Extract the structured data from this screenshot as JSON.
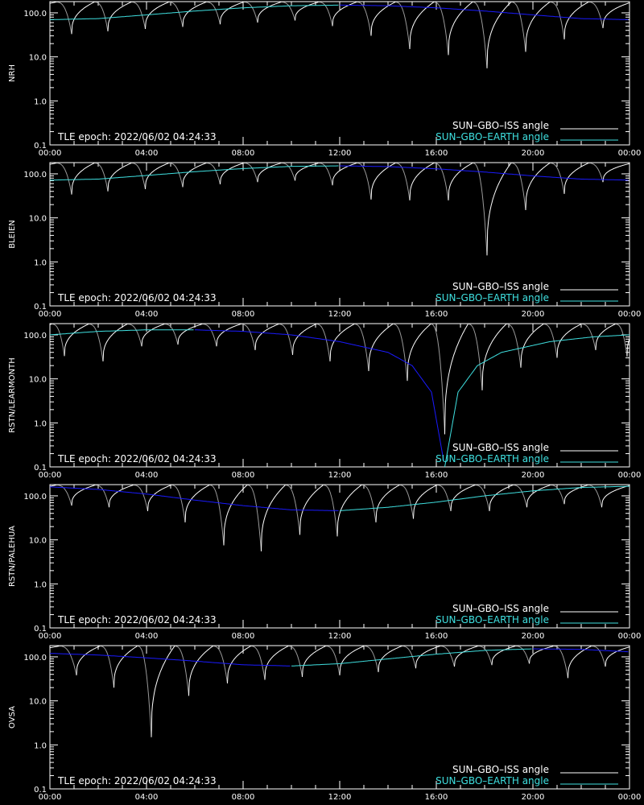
{
  "colors": {
    "background": "#000000",
    "axes": "#ffffff",
    "iss_series": "#ffffff",
    "earth_series_sun_side": "#3fe0e0",
    "earth_series_other_side": "#1a1aff"
  },
  "legend": {
    "iss_label": "SUN–GBO–ISS angle",
    "earth_label": "SUN–GBO–EARTH angle",
    "position": "bottom-right"
  },
  "epoch_label": "TLE epoch: 2022/06/02 04:24:33",
  "x_ticks": [
    "00:00",
    "04:00",
    "08:00",
    "12:00",
    "16:00",
    "20:00",
    "00:00"
  ],
  "y_ticks": [
    "0.1",
    "1.0",
    "10.0",
    "100.0"
  ],
  "chart_data": [
    {
      "type": "line",
      "ylabel": "NRH",
      "y_scale": "log",
      "ylim": [
        0.1,
        180
      ],
      "xlim_hours": [
        0,
        24
      ],
      "iss_minima": [
        {
          "t": 0.9,
          "v": 33
        },
        {
          "t": 2.4,
          "v": 38
        },
        {
          "t": 3.95,
          "v": 43
        },
        {
          "t": 5.5,
          "v": 48
        },
        {
          "t": 7.05,
          "v": 55
        },
        {
          "t": 8.6,
          "v": 60
        },
        {
          "t": 10.15,
          "v": 67
        },
        {
          "t": 11.7,
          "v": 50
        },
        {
          "t": 13.3,
          "v": 30
        },
        {
          "t": 14.9,
          "v": 15
        },
        {
          "t": 16.5,
          "v": 11
        },
        {
          "t": 18.1,
          "v": 5.5
        },
        {
          "t": 19.7,
          "v": 13
        },
        {
          "t": 21.3,
          "v": 25
        },
        {
          "t": 22.9,
          "v": 45
        }
      ],
      "earth_curve": [
        {
          "t": 0,
          "v": 70
        },
        {
          "t": 2,
          "v": 74
        },
        {
          "t": 4,
          "v": 90
        },
        {
          "t": 6,
          "v": 110
        },
        {
          "t": 8,
          "v": 130
        },
        {
          "t": 10,
          "v": 145
        },
        {
          "t": 12,
          "v": 150
        },
        {
          "t": 14,
          "v": 145
        },
        {
          "t": 16,
          "v": 130
        },
        {
          "t": 18,
          "v": 110
        },
        {
          "t": 20,
          "v": 90
        },
        {
          "t": 22,
          "v": 74
        },
        {
          "t": 24,
          "v": 70
        }
      ]
    },
    {
      "type": "line",
      "ylabel": "BLEIEN",
      "y_scale": "log",
      "ylim": [
        0.1,
        180
      ],
      "xlim_hours": [
        0,
        24
      ],
      "iss_minima": [
        {
          "t": 0.9,
          "v": 34
        },
        {
          "t": 2.4,
          "v": 40
        },
        {
          "t": 3.95,
          "v": 45
        },
        {
          "t": 5.5,
          "v": 50
        },
        {
          "t": 7.05,
          "v": 58
        },
        {
          "t": 8.6,
          "v": 65
        },
        {
          "t": 10.15,
          "v": 70
        },
        {
          "t": 11.7,
          "v": 55
        },
        {
          "t": 13.3,
          "v": 26
        },
        {
          "t": 14.9,
          "v": 25
        },
        {
          "t": 16.5,
          "v": 25
        },
        {
          "t": 18.1,
          "v": 1.4
        },
        {
          "t": 19.7,
          "v": 15
        },
        {
          "t": 21.3,
          "v": 35
        },
        {
          "t": 22.9,
          "v": 65
        }
      ],
      "earth_curve": [
        {
          "t": 0,
          "v": 72
        },
        {
          "t": 2,
          "v": 76
        },
        {
          "t": 4,
          "v": 92
        },
        {
          "t": 6,
          "v": 112
        },
        {
          "t": 8,
          "v": 132
        },
        {
          "t": 10,
          "v": 148
        },
        {
          "t": 12,
          "v": 152
        },
        {
          "t": 14,
          "v": 146
        },
        {
          "t": 16,
          "v": 130
        },
        {
          "t": 18,
          "v": 110
        },
        {
          "t": 20,
          "v": 90
        },
        {
          "t": 22,
          "v": 76
        },
        {
          "t": 24,
          "v": 72
        }
      ]
    },
    {
      "type": "line",
      "ylabel": "RSTN/LEARMONTH",
      "y_scale": "log",
      "ylim": [
        0.1,
        180
      ],
      "xlim_hours": [
        0,
        24
      ],
      "iss_minima": [
        {
          "t": 0.6,
          "v": 33
        },
        {
          "t": 2.2,
          "v": 25
        },
        {
          "t": 3.8,
          "v": 55
        },
        {
          "t": 5.3,
          "v": 60
        },
        {
          "t": 6.9,
          "v": 55
        },
        {
          "t": 8.5,
          "v": 45
        },
        {
          "t": 10.05,
          "v": 35
        },
        {
          "t": 11.6,
          "v": 25
        },
        {
          "t": 13.2,
          "v": 15
        },
        {
          "t": 14.8,
          "v": 9
        },
        {
          "t": 16.35,
          "v": 0.55
        },
        {
          "t": 17.9,
          "v": 5.5
        },
        {
          "t": 19.5,
          "v": 18
        },
        {
          "t": 21.0,
          "v": 30
        },
        {
          "t": 22.6,
          "v": 45
        },
        {
          "t": 23.9,
          "v": 32
        }
      ],
      "earth_curve": [
        {
          "t": 0,
          "v": 100
        },
        {
          "t": 2,
          "v": 120
        },
        {
          "t": 4,
          "v": 130
        },
        {
          "t": 6,
          "v": 130
        },
        {
          "t": 8,
          "v": 120
        },
        {
          "t": 10,
          "v": 100
        },
        {
          "t": 12,
          "v": 70
        },
        {
          "t": 14,
          "v": 40
        },
        {
          "t": 15,
          "v": 20
        },
        {
          "t": 15.8,
          "v": 5
        },
        {
          "t": 16.35,
          "v": 0.1
        },
        {
          "t": 16.9,
          "v": 5
        },
        {
          "t": 17.7,
          "v": 20
        },
        {
          "t": 18.7,
          "v": 40
        },
        {
          "t": 20.7,
          "v": 70
        },
        {
          "t": 22.5,
          "v": 90
        },
        {
          "t": 24,
          "v": 100
        }
      ]
    },
    {
      "type": "line",
      "ylabel": "RSTN/PALEHUA",
      "y_scale": "log",
      "ylim": [
        0.1,
        180
      ],
      "xlim_hours": [
        0,
        24
      ],
      "iss_minima": [
        {
          "t": 0.9,
          "v": 60
        },
        {
          "t": 2.45,
          "v": 55
        },
        {
          "t": 4.05,
          "v": 45
        },
        {
          "t": 5.6,
          "v": 25
        },
        {
          "t": 7.2,
          "v": 7.5
        },
        {
          "t": 8.75,
          "v": 5.5
        },
        {
          "t": 10.35,
          "v": 13
        },
        {
          "t": 11.9,
          "v": 12
        },
        {
          "t": 13.5,
          "v": 25
        },
        {
          "t": 15.05,
          "v": 30
        },
        {
          "t": 16.6,
          "v": 45
        },
        {
          "t": 18.2,
          "v": 45
        },
        {
          "t": 19.75,
          "v": 55
        },
        {
          "t": 21.3,
          "v": 65
        },
        {
          "t": 22.85,
          "v": 55
        }
      ],
      "earth_curve": [
        {
          "t": 0,
          "v": 160
        },
        {
          "t": 2,
          "v": 140
        },
        {
          "t": 4,
          "v": 110
        },
        {
          "t": 6,
          "v": 80
        },
        {
          "t": 8,
          "v": 60
        },
        {
          "t": 10,
          "v": 48
        },
        {
          "t": 12,
          "v": 46
        },
        {
          "t": 14,
          "v": 55
        },
        {
          "t": 16,
          "v": 72
        },
        {
          "t": 18,
          "v": 100
        },
        {
          "t": 20,
          "v": 130
        },
        {
          "t": 22,
          "v": 155
        },
        {
          "t": 24,
          "v": 165
        }
      ]
    },
    {
      "type": "line",
      "ylabel": "OVSA",
      "y_scale": "log",
      "ylim": [
        0.1,
        180
      ],
      "xlim_hours": [
        0,
        24
      ],
      "iss_minima": [
        {
          "t": 1.1,
          "v": 38
        },
        {
          "t": 2.65,
          "v": 20
        },
        {
          "t": 4.2,
          "v": 1.5
        },
        {
          "t": 5.75,
          "v": 13
        },
        {
          "t": 7.35,
          "v": 25
        },
        {
          "t": 8.9,
          "v": 30
        },
        {
          "t": 10.45,
          "v": 35
        },
        {
          "t": 12.0,
          "v": 38
        },
        {
          "t": 13.6,
          "v": 45
        },
        {
          "t": 15.15,
          "v": 55
        },
        {
          "t": 16.75,
          "v": 60
        },
        {
          "t": 18.3,
          "v": 65
        },
        {
          "t": 19.85,
          "v": 70
        },
        {
          "t": 21.45,
          "v": 33
        },
        {
          "t": 23.0,
          "v": 60
        }
      ],
      "earth_curve": [
        {
          "t": 0,
          "v": 120
        },
        {
          "t": 2,
          "v": 110
        },
        {
          "t": 4,
          "v": 95
        },
        {
          "t": 6,
          "v": 80
        },
        {
          "t": 8,
          "v": 66
        },
        {
          "t": 10,
          "v": 62
        },
        {
          "t": 12,
          "v": 70
        },
        {
          "t": 14,
          "v": 90
        },
        {
          "t": 16,
          "v": 115
        },
        {
          "t": 18,
          "v": 140
        },
        {
          "t": 20,
          "v": 152
        },
        {
          "t": 22,
          "v": 148
        },
        {
          "t": 24,
          "v": 130
        }
      ]
    }
  ]
}
